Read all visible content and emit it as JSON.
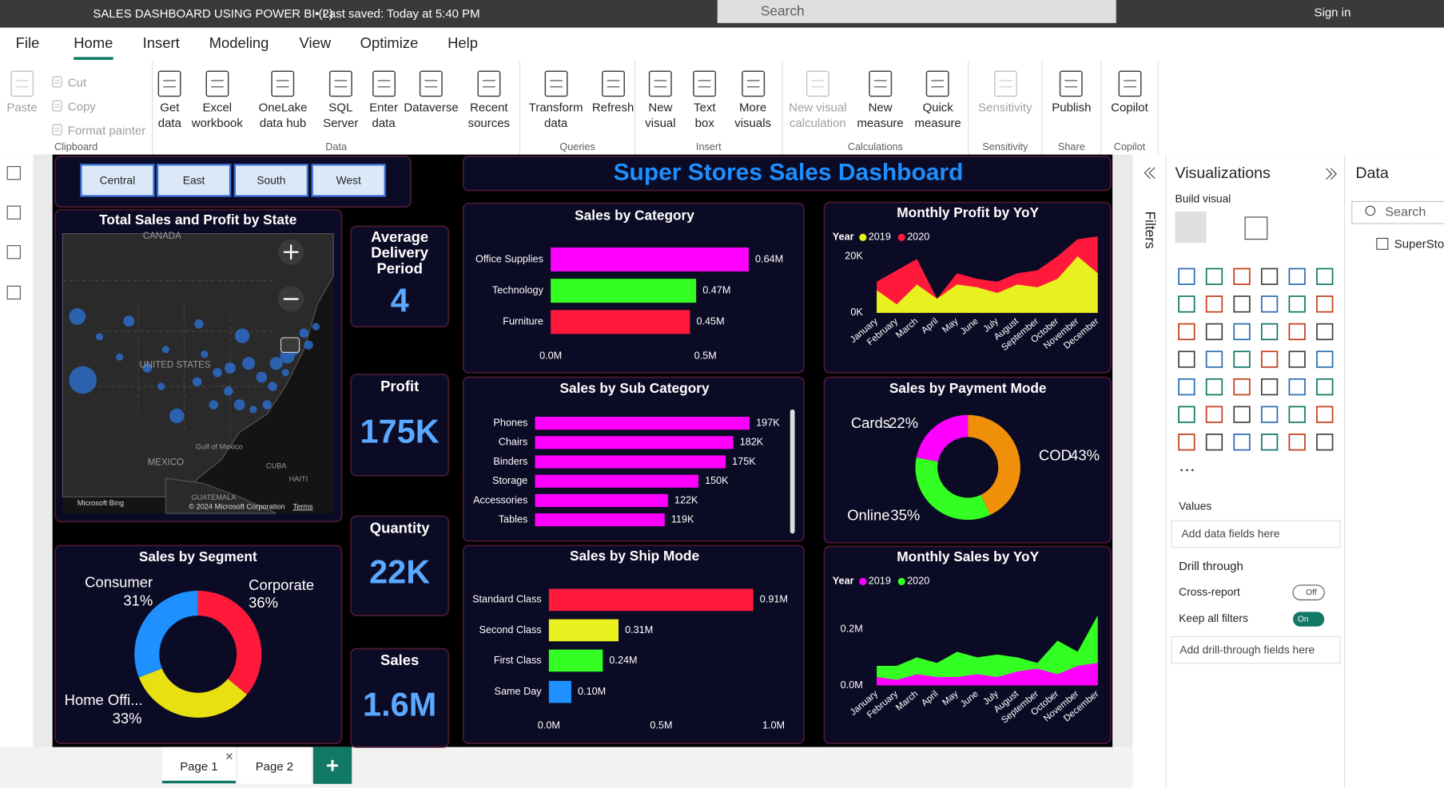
{
  "title_bar": {
    "document": "SALES DASHBOARD USING POWER BI (2)",
    "status": "• Last saved: Today at 5:40 PM",
    "search": "Search",
    "sign_in": "Sign in"
  },
  "menu": [
    "File",
    "Home",
    "Insert",
    "Modeling",
    "View",
    "Optimize",
    "Help"
  ],
  "ribbon": [
    {
      "group": "Clipboard",
      "buttons": [
        "Paste",
        "Cut",
        "Copy",
        "Format painter"
      ]
    },
    {
      "group": "Data",
      "buttons": [
        "Get data",
        "Excel workbook",
        "OneLake data hub",
        "SQL Server",
        "Enter data",
        "Dataverse",
        "Recent sources"
      ]
    },
    {
      "group": "Queries",
      "buttons": [
        "Transform data",
        "Refresh"
      ]
    },
    {
      "group": "Insert",
      "buttons": [
        "New visual",
        "Text box",
        "More visuals"
      ]
    },
    {
      "group": "Calculations",
      "buttons": [
        "New visual calculation",
        "New measure",
        "Quick measure"
      ]
    },
    {
      "group": "Sensitivity",
      "buttons": [
        "Sensitivity"
      ]
    },
    {
      "group": "Share",
      "buttons": [
        "Publish"
      ]
    },
    {
      "group": "Copilot",
      "buttons": [
        "Copilot"
      ]
    }
  ],
  "dashboard": {
    "slicer": [
      "Central",
      "East",
      "South",
      "West"
    ],
    "title": "Super Stores Sales Dashboard",
    "map": {
      "title": "Total Sales and Profit by State",
      "labels": [
        "CANADA",
        "UNITED STATES",
        "MEXICO",
        "Gulf of Mexico",
        "CUBA",
        "HAITI",
        "GUATEMALA"
      ],
      "attribution": "Microsoft Bing",
      "copyright": "© 2024 Microsoft Corporation",
      "terms": "Terms"
    },
    "kpis": [
      {
        "title": "Average Delivery Period",
        "value": "4"
      },
      {
        "title": "Profit",
        "value": "175K"
      },
      {
        "title": "Quantity",
        "value": "22K"
      },
      {
        "title": "Sales",
        "value": "1.6M"
      }
    ],
    "sales_by_category": {
      "type": "bar",
      "title": "Sales by Category",
      "categories": [
        "Office Supplies",
        "Technology",
        "Furniture"
      ],
      "values": [
        640000,
        470000,
        450000
      ],
      "value_labels": [
        "0.64M",
        "0.47M",
        "0.45M"
      ],
      "colors": [
        "#ff00ff",
        "#33ff22",
        "#ff1a3c"
      ],
      "xlim": [
        0,
        700000
      ],
      "xticks": [
        {
          "value": 0,
          "label": "0.0M"
        },
        {
          "value": 500000,
          "label": "0.5M"
        }
      ]
    },
    "sales_by_sub_category": {
      "type": "bar",
      "title": "Sales by Sub Category",
      "categories": [
        "Phones",
        "Chairs",
        "Binders",
        "Storage",
        "Accessories",
        "Tables"
      ],
      "values": [
        197000,
        182000,
        175000,
        150000,
        122000,
        119000
      ],
      "value_labels": [
        "197K",
        "182K",
        "175K",
        "150K",
        "122K",
        "119K"
      ],
      "color": "#ff00ff"
    },
    "sales_by_ship_mode": {
      "type": "bar",
      "title": "Sales by Ship Mode",
      "categories": [
        "Standard Class",
        "Second Class",
        "First Class",
        "Same Day"
      ],
      "values": [
        910000,
        310000,
        240000,
        100000
      ],
      "value_labels": [
        "0.91M",
        "0.31M",
        "0.24M",
        "0.10M"
      ],
      "colors": [
        "#ff1a3c",
        "#e8f020",
        "#33ff22",
        "#1e90ff"
      ],
      "xlim": [
        0,
        1000000
      ],
      "xticks": [
        {
          "value": 0,
          "label": "0.0M"
        },
        {
          "value": 500000,
          "label": "0.5M"
        },
        {
          "value": 1000000,
          "label": "1.0M"
        }
      ]
    },
    "monthly_profit": {
      "type": "area",
      "title": "Monthly Profit by YoY",
      "legend_title": "Year",
      "categories": [
        "January",
        "February",
        "March",
        "April",
        "May",
        "June",
        "July",
        "August",
        "September",
        "October",
        "November",
        "December"
      ],
      "series": [
        {
          "name": "2019",
          "color": "#e8f020",
          "values": [
            8000,
            3000,
            10000,
            5000,
            10000,
            9000,
            7000,
            10000,
            9000,
            12000,
            20000,
            14000
          ]
        },
        {
          "name": "2020",
          "color": "#ff1a3c",
          "values": [
            11000,
            15000,
            19000,
            5000,
            14000,
            12000,
            11000,
            14000,
            15000,
            20000,
            26000,
            27000
          ]
        }
      ],
      "ylim": [
        0,
        30000
      ],
      "yticks": [
        {
          "value": 0,
          "label": "0K"
        },
        {
          "value": 20000,
          "label": "20K"
        }
      ]
    },
    "payment_mode": {
      "type": "donut",
      "title": "Sales by Payment Mode",
      "categories": [
        "COD",
        "Online",
        "Cards"
      ],
      "values": [
        43,
        35,
        22
      ],
      "value_labels": [
        "43%",
        "35%",
        "22%"
      ],
      "colors": [
        "#f0900a",
        "#33ff22",
        "#ff00ff"
      ]
    },
    "monthly_sales": {
      "type": "area",
      "title": "Monthly Sales by YoY",
      "legend_title": "Year",
      "categories": [
        "January",
        "February",
        "March",
        "April",
        "May",
        "June",
        "July",
        "August",
        "September",
        "October",
        "November",
        "December"
      ],
      "series": [
        {
          "name": "2019",
          "color": "#ff00ff",
          "values": [
            30000,
            20000,
            40000,
            30000,
            30000,
            40000,
            30000,
            50000,
            60000,
            40000,
            70000,
            80000
          ]
        },
        {
          "name": "2020",
          "color": "#33ff22",
          "values": [
            70000,
            70000,
            100000,
            80000,
            120000,
            100000,
            110000,
            100000,
            80000,
            160000,
            120000,
            250000
          ]
        }
      ],
      "ylim": [
        0,
        260000
      ],
      "yticks": [
        {
          "value": 0,
          "label": "0.0M"
        },
        {
          "value": 200000,
          "label": "0.2M"
        }
      ]
    },
    "segment": {
      "type": "donut",
      "title": "Sales by Segment",
      "categories": [
        "Corporate",
        "Home Offi...",
        "Consumer"
      ],
      "values": [
        36,
        33,
        31
      ],
      "value_labels": [
        "36%",
        "33%",
        "31%"
      ],
      "colors": [
        "#ff1a3c",
        "#e8e010",
        "#1e90ff"
      ]
    }
  },
  "filters": {
    "title": "Filters"
  },
  "visualizations": {
    "title": "Visualizations",
    "build": "Build visual",
    "values": "Values",
    "values_well": "Add data fields here",
    "drill": "Drill through",
    "cross_report": "Cross-report",
    "off": "Off",
    "keep_filters": "Keep all filters",
    "on": "On",
    "drill_well": "Add drill-through fields here"
  },
  "data_pane": {
    "title": "Data",
    "search": "Search",
    "table": "SuperStor"
  },
  "pages": [
    "Page 1",
    "Page 2"
  ]
}
